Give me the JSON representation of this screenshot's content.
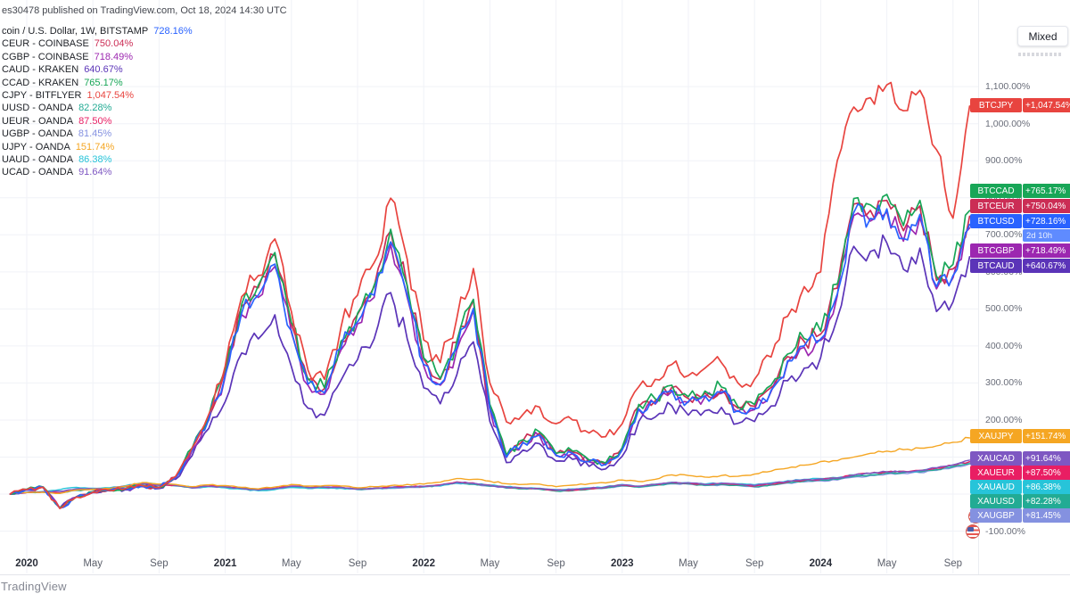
{
  "attribution": "es30478 published on TradingView.com, Oct 18, 2024 14:30 UTC",
  "toolbar": {
    "mode_label": "Mixed"
  },
  "footer": {
    "credit": "TradingView"
  },
  "legend": {
    "rows": [
      {
        "label": "coin / U.S. Dollar, 1W, BITSTAMP",
        "value": "728.16%",
        "color": "#2962ff"
      },
      {
        "label": "CEUR - COINBASE",
        "value": "750.04%",
        "color": "#cb2d55"
      },
      {
        "label": "CGBP - COINBASE",
        "value": "718.49%",
        "color": "#9c27b0"
      },
      {
        "label": "CAUD - KRAKEN",
        "value": "640.67%",
        "color": "#5b34b8"
      },
      {
        "label": "CCAD - KRAKEN",
        "value": "765.17%",
        "color": "#18a657"
      },
      {
        "label": "CJPY - BITFLYER",
        "value": "1,047.54%",
        "color": "#e8443f"
      },
      {
        "label": "UUSD - OANDA",
        "value": "82.28%",
        "color": "#22ab94"
      },
      {
        "label": "UEUR - OANDA",
        "value": "87.50%",
        "color": "#e91e63"
      },
      {
        "label": "UGBP - OANDA",
        "value": "81.45%",
        "color": "#8491e0"
      },
      {
        "label": "UJPY - OANDA",
        "value": "151.74%",
        "color": "#f5a623"
      },
      {
        "label": "UAUD - OANDA",
        "value": "86.38%",
        "color": "#27c4d9"
      },
      {
        "label": "UCAD - OANDA",
        "value": "91.64%",
        "color": "#7e57c2"
      }
    ]
  },
  "chart_data": {
    "type": "line",
    "x_unit": "month",
    "x_start": "2019-12",
    "x_end": "2024-10",
    "grid": true,
    "legend_position": "top-left",
    "ylabel": "percent change",
    "ylim": [
      -100,
      1100
    ],
    "y_tick_step": 100,
    "countdown": "2d 10h",
    "x_axis_ticks": [
      {
        "label": "2020",
        "month": 1,
        "bold": true
      },
      {
        "label": "May",
        "month": 5,
        "bold": false
      },
      {
        "label": "Sep",
        "month": 9,
        "bold": false
      },
      {
        "label": "2021",
        "month": 13,
        "bold": true
      },
      {
        "label": "May",
        "month": 17,
        "bold": false
      },
      {
        "label": "Sep",
        "month": 21,
        "bold": false
      },
      {
        "label": "2022",
        "month": 25,
        "bold": true
      },
      {
        "label": "May",
        "month": 29,
        "bold": false
      },
      {
        "label": "Sep",
        "month": 33,
        "bold": false
      },
      {
        "label": "2023",
        "month": 37,
        "bold": true
      },
      {
        "label": "May",
        "month": 41,
        "bold": false
      },
      {
        "label": "Sep",
        "month": 45,
        "bold": false
      },
      {
        "label": "2024",
        "month": 49,
        "bold": true
      },
      {
        "label": "May",
        "month": 53,
        "bold": false
      },
      {
        "label": "Sep",
        "month": 57,
        "bold": false
      }
    ],
    "series": [
      {
        "ticker": "BTCUSD",
        "exchange": "BITSTAMP",
        "value_label": "+728.16%",
        "end_value": 728.16,
        "color": "#2962ff",
        "group": "btc",
        "values": [
          0,
          12,
          18,
          -38,
          -8,
          5,
          10,
          14,
          22,
          17,
          45,
          118,
          201,
          321,
          489,
          537,
          621,
          441,
          297,
          273,
          393,
          465,
          537,
          681,
          537,
          350,
          297,
          393,
          501,
          230,
          100,
          140,
          160,
          105,
          110,
          88,
          80,
          120,
          230,
          245,
          280,
          250,
          265,
          275,
          225,
          230,
          280,
          360,
          400,
          419,
          540,
          760,
          744,
          770,
          690,
          755,
          560,
          590,
          728.16
        ]
      },
      {
        "ticker": "BTCEUR",
        "exchange": "COINBASE",
        "value_label": "+750.04%",
        "end_value": 750.04,
        "color": "#cb2d55",
        "group": "btc",
        "values": [
          0,
          12,
          19,
          -37,
          -7,
          6,
          11,
          14,
          21,
          16,
          46,
          122,
          208,
          333,
          507,
          557,
          644,
          458,
          309,
          285,
          410,
          485,
          560,
          710,
          560,
          365,
          310,
          410,
          523,
          237,
          103,
          144,
          165,
          108,
          113,
          91,
          82,
          124,
          237,
          252,
          288,
          258,
          273,
          283,
          232,
          237,
          288,
          371,
          412,
          432,
          556,
          783,
          766,
          793,
          711,
          778,
          577,
          608,
          750.04
        ]
      },
      {
        "ticker": "BTCGBP",
        "exchange": "COINBASE",
        "value_label": "+718.49%",
        "end_value": 718.49,
        "color": "#9c27b0",
        "group": "btc",
        "values": [
          0,
          12,
          18,
          -38,
          -8,
          5,
          10,
          14,
          22,
          17,
          44,
          117,
          199,
          318,
          484,
          531,
          615,
          437,
          294,
          270,
          389,
          460,
          531,
          674,
          531,
          346,
          294,
          389,
          496,
          228,
          99,
          139,
          158,
          104,
          109,
          87,
          79,
          119,
          228,
          243,
          277,
          248,
          262,
          272,
          223,
          228,
          277,
          356,
          396,
          415,
          535,
          752,
          737,
          762,
          683,
          747,
          554,
          584,
          718.49
        ]
      },
      {
        "ticker": "BTCAUD",
        "exchange": "KRAKEN",
        "value_label": "+640.67%",
        "end_value": 640.67,
        "color": "#5b34b8",
        "group": "btc",
        "values": [
          0,
          11,
          17,
          -37,
          -8,
          4,
          9,
          13,
          20,
          15,
          40,
          104,
          177,
          250,
          381,
          419,
          484,
          344,
          232,
          213,
          307,
          363,
          419,
          544,
          419,
          287,
          244,
          322,
          411,
          196,
          85,
          119,
          136,
          89,
          94,
          75,
          68,
          102,
          196,
          208,
          238,
          213,
          225,
          234,
          191,
          196,
          238,
          306,
          340,
          369,
          475,
          669,
          655,
          678,
          607,
          664,
          493,
          519,
          640.67
        ]
      },
      {
        "ticker": "BTCCAD",
        "exchange": "KRAKEN",
        "value_label": "+765.17%",
        "end_value": 765.17,
        "color": "#18a657",
        "group": "btc",
        "values": [
          0,
          13,
          19,
          -36,
          -7,
          6,
          11,
          15,
          23,
          18,
          47,
          124,
          211,
          337,
          513,
          564,
          652,
          463,
          312,
          287,
          413,
          488,
          564,
          715,
          564,
          368,
          312,
          413,
          526,
          242,
          105,
          147,
          168,
          110,
          116,
          92,
          84,
          126,
          242,
          257,
          294,
          263,
          278,
          289,
          236,
          242,
          294,
          378,
          420,
          440,
          567,
          798,
          781,
          809,
          725,
          793,
          588,
          620,
          765.17
        ]
      },
      {
        "ticker": "BTCJPY",
        "exchange": "BITFLYER",
        "value_label": "+1,047.54%",
        "end_value": 1047.54,
        "color": "#e8443f",
        "group": "btc",
        "values": [
          0,
          12,
          18,
          -39,
          -8,
          5,
          10,
          15,
          23,
          18,
          48,
          125,
          215,
          346,
          533,
          590,
          689,
          493,
          335,
          310,
          450,
          537,
          625,
          799,
          634,
          416,
          355,
          474,
          609,
          300,
          195,
          215,
          235,
          190,
          200,
          165,
          155,
          190,
          290,
          310,
          350,
          320,
          340,
          355,
          300,
          310,
          370,
          480,
          560,
          600,
          900,
          1045,
          1070,
          1105,
          1035,
          1090,
          930,
          745,
          1047.54
        ]
      },
      {
        "ticker": "XAUUSD",
        "exchange": "OANDA",
        "value_label": "+82.28%",
        "end_value": 82.28,
        "color": "#22ab94",
        "group": "xau",
        "values": [
          0,
          4,
          5,
          2,
          10,
          12,
          14,
          20,
          28,
          24,
          23,
          17,
          21,
          19,
          15,
          11,
          15,
          21,
          17,
          18,
          17,
          13,
          15,
          17,
          19,
          20,
          23,
          30,
          27,
          22,
          17,
          14,
          13,
          8,
          9,
          13,
          17,
          23,
          19,
          24,
          29,
          28,
          24,
          26,
          24,
          20,
          25,
          31,
          35,
          38,
          40,
          48,
          52,
          56,
          58,
          60,
          66,
          74,
          82.28
        ]
      },
      {
        "ticker": "XAUEUR",
        "exchange": "OANDA",
        "value_label": "+87.50%",
        "end_value": 87.5,
        "color": "#e91e63",
        "group": "xau",
        "values": [
          0,
          4,
          6,
          3,
          11,
          13,
          15,
          21,
          29,
          25,
          24,
          18,
          22,
          20,
          16,
          12,
          16,
          22,
          18,
          19,
          18,
          14,
          16,
          18,
          20,
          21,
          25,
          33,
          30,
          24,
          19,
          16,
          15,
          10,
          11,
          15,
          18,
          24,
          21,
          26,
          31,
          30,
          26,
          28,
          26,
          22,
          27,
          33,
          37,
          40,
          43,
          51,
          56,
          60,
          62,
          64,
          70,
          78,
          87.5
        ]
      },
      {
        "ticker": "XAUGBP",
        "exchange": "OANDA",
        "value_label": "+81.45%",
        "end_value": 81.45,
        "color": "#8491e0",
        "group": "xau",
        "values": [
          0,
          4,
          5,
          4,
          12,
          13,
          14,
          20,
          27,
          23,
          22,
          16,
          20,
          18,
          14,
          10,
          14,
          20,
          16,
          17,
          16,
          12,
          14,
          16,
          18,
          19,
          22,
          29,
          26,
          21,
          16,
          15,
          14,
          12,
          13,
          14,
          16,
          22,
          18,
          23,
          28,
          27,
          23,
          25,
          23,
          19,
          24,
          30,
          33,
          36,
          38,
          46,
          50,
          54,
          56,
          58,
          64,
          72,
          81.45
        ]
      },
      {
        "ticker": "XAUJPY",
        "exchange": "OANDA",
        "value_label": "+151.74%",
        "end_value": 151.74,
        "color": "#f5a623",
        "group": "xau",
        "values": [
          0,
          4,
          5,
          2,
          11,
          13,
          15,
          22,
          31,
          27,
          26,
          20,
          25,
          23,
          18,
          14,
          19,
          26,
          22,
          23,
          22,
          17,
          20,
          23,
          26,
          27,
          32,
          42,
          40,
          35,
          28,
          26,
          27,
          20,
          24,
          28,
          30,
          38,
          34,
          40,
          52,
          50,
          46,
          50,
          48,
          54,
          62,
          70,
          78,
          88,
          90,
          100,
          110,
          116,
          120,
          124,
          130,
          140,
          151.74
        ]
      },
      {
        "ticker": "XAUAUD",
        "exchange": "OANDA",
        "value_label": "+86.38%",
        "end_value": 86.38,
        "color": "#27c4d9",
        "group": "xau",
        "values": [
          0,
          5,
          7,
          12,
          18,
          16,
          17,
          23,
          30,
          26,
          25,
          18,
          20,
          17,
          13,
          9,
          12,
          18,
          15,
          16,
          16,
          13,
          15,
          16,
          18,
          19,
          22,
          30,
          28,
          24,
          20,
          17,
          16,
          12,
          14,
          17,
          20,
          26,
          22,
          27,
          32,
          31,
          27,
          30,
          28,
          25,
          30,
          36,
          40,
          42,
          44,
          52,
          56,
          60,
          61,
          63,
          69,
          77,
          86.38
        ]
      },
      {
        "ticker": "XAUCAD",
        "exchange": "OANDA",
        "value_label": "+91.64%",
        "end_value": 91.64,
        "color": "#7e57c2",
        "group": "xau",
        "values": [
          0,
          4,
          6,
          8,
          14,
          14,
          15,
          21,
          29,
          25,
          24,
          17,
          21,
          19,
          15,
          11,
          15,
          21,
          18,
          19,
          18,
          14,
          16,
          18,
          20,
          21,
          24,
          32,
          29,
          24,
          19,
          16,
          15,
          11,
          12,
          16,
          19,
          25,
          21,
          26,
          31,
          30,
          26,
          29,
          27,
          23,
          28,
          35,
          39,
          41,
          43,
          51,
          56,
          60,
          61,
          64,
          71,
          79,
          91.64
        ]
      }
    ]
  }
}
